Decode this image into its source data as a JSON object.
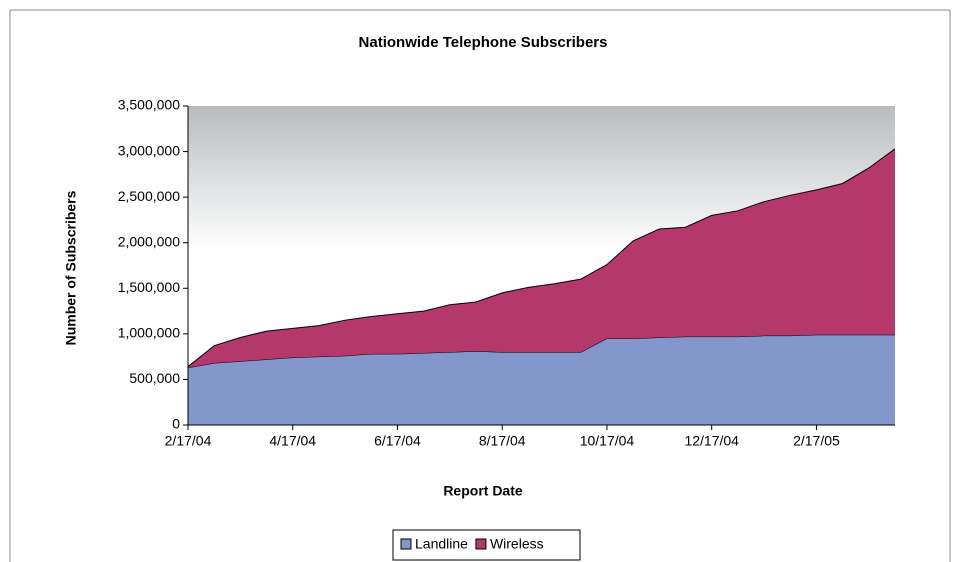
{
  "chart_data": {
    "type": "stacked_area",
    "title": "Nationwide Telephone Subscribers",
    "x_label": "Report Date",
    "y_label": "Number of Subscribers",
    "categories": [
      "2/17/04",
      null,
      null,
      null,
      "4/17/04",
      null,
      null,
      null,
      "6/17/04",
      null,
      null,
      null,
      "8/17/04",
      null,
      null,
      null,
      "10/17/04",
      null,
      null,
      null,
      "12/17/04",
      null,
      null,
      null,
      "2/17/05",
      null,
      null,
      null
    ],
    "series": [
      {
        "name": "Landline",
        "color": "#8497cc",
        "values": [
          630000,
          680000,
          700000,
          720000,
          740000,
          750000,
          760000,
          780000,
          780000,
          790000,
          800000,
          810000,
          800000,
          800000,
          800000,
          800000,
          950000,
          950000,
          960000,
          970000,
          970000,
          970000,
          980000,
          980000,
          990000,
          990000,
          990000,
          990000
        ]
      },
      {
        "name": "Wireless",
        "color": "#b5386b",
        "values": [
          10000,
          190000,
          260000,
          310000,
          320000,
          340000,
          390000,
          410000,
          440000,
          460000,
          520000,
          540000,
          650000,
          710000,
          750000,
          800000,
          810000,
          1070000,
          1190000,
          1200000,
          1330000,
          1380000,
          1470000,
          1540000,
          1590000,
          1660000,
          1830000,
          2040000
        ]
      }
    ],
    "ylim": [
      0,
      3500000
    ],
    "yticks": [
      0,
      {
        "value": 500000,
        "label": "500,000"
      },
      {
        "value": 1000000,
        "label": "1,000,000"
      },
      {
        "value": 1500000,
        "label": "1,500,000"
      },
      {
        "value": 2000000,
        "label": "2,000,000"
      },
      {
        "value": 2500000,
        "label": "2,500,000"
      },
      {
        "value": 3000000,
        "label": "3,000,000"
      },
      {
        "value": 3500000,
        "label": "3,500,000"
      }
    ],
    "grid": false,
    "legend": "bottom"
  }
}
